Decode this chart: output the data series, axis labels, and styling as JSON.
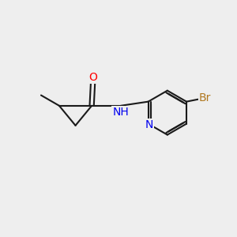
{
  "bg_color": "#eeeeee",
  "bond_color": "#1a1a1a",
  "bond_width": 1.5,
  "atom_colors": {
    "O": "#ff0000",
    "N": "#0000ee",
    "Br": "#b07820",
    "C": "#1a1a1a"
  },
  "font_size_atom": 10,
  "font_size_methyl": 9
}
